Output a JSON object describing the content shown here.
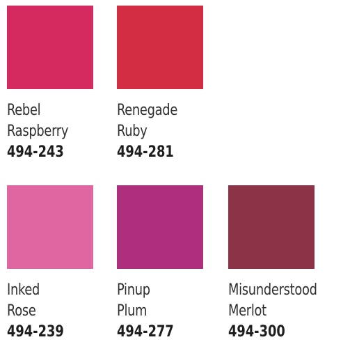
{
  "swatches": [
    {
      "name_line1": "Rebel",
      "name_line2": "Raspberry",
      "code": "494-243",
      "color": "#d42a60"
    },
    {
      "name_line1": "Renegade",
      "name_line2": "Ruby",
      "code": "494-281",
      "color": "#d22c43"
    },
    {
      "name_line1": "Inked",
      "name_line2": "Rose",
      "code": "494-239",
      "color": "#e066a1"
    },
    {
      "name_line1": "Pinup",
      "name_line2": "Plum",
      "code": "494-277",
      "color": "#ae307d"
    },
    {
      "name_line1": "Misunderstood",
      "name_line2": "Merlot",
      "code": "494-300",
      "color": "#8c3347"
    }
  ]
}
